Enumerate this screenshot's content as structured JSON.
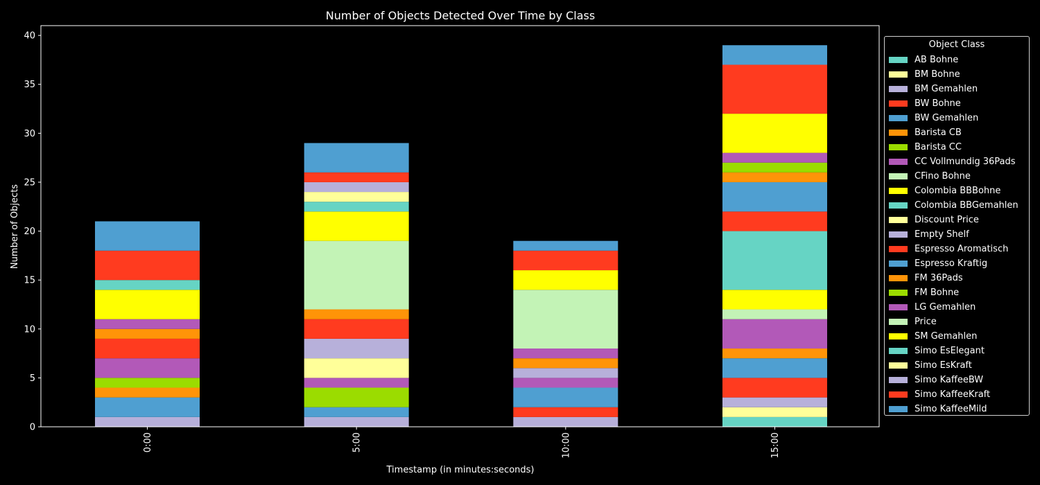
{
  "chart_data": {
    "type": "bar",
    "stacked": true,
    "title": "Number of Objects Detected Over Time by Class",
    "xlabel": "Timestamp (in minutes:seconds)",
    "ylabel": "Number of Objects",
    "categories": [
      "0:00",
      "5:00",
      "10:00",
      "15:00"
    ],
    "ylim": [
      0,
      41
    ],
    "yticks": [
      0,
      5,
      10,
      15,
      20,
      25,
      30,
      35,
      40
    ],
    "legend_title": "Object Class",
    "legend_position": "right, outside plot",
    "series": [
      {
        "name": "AB Bohne",
        "color": "#66d4c4",
        "values": [
          0,
          0,
          0,
          1
        ]
      },
      {
        "name": "BM Bohne",
        "color": "#ffff99",
        "values": [
          0,
          0,
          0,
          1
        ]
      },
      {
        "name": "BM Gemahlen",
        "color": "#b7b0da",
        "values": [
          1,
          1,
          1,
          1
        ]
      },
      {
        "name": "BW Bohne",
        "color": "#ff3b1f",
        "values": [
          0,
          0,
          1,
          2
        ]
      },
      {
        "name": "BW Gemahlen",
        "color": "#4f9fd1",
        "values": [
          2,
          1,
          2,
          2
        ]
      },
      {
        "name": "Barista CB",
        "color": "#ff9408",
        "values": [
          1,
          0,
          0,
          1
        ]
      },
      {
        "name": "Barista CC",
        "color": "#9bdc00",
        "values": [
          1,
          2,
          0,
          0
        ]
      },
      {
        "name": "CC Vollmundig 36Pads",
        "color": "#b259b8",
        "values": [
          2,
          1,
          1,
          3
        ]
      },
      {
        "name": "CFino Bohne",
        "color": "#c3f3b6",
        "values": [
          0,
          0,
          0,
          1
        ]
      },
      {
        "name": "Colombia BBBohne",
        "color": "#ffff00",
        "values": [
          0,
          0,
          0,
          2
        ]
      },
      {
        "name": "Colombia BBGemahlen",
        "color": "#66d4c4",
        "values": [
          0,
          0,
          0,
          6
        ]
      },
      {
        "name": "Discount Price",
        "color": "#ffff99",
        "values": [
          0,
          2,
          0,
          0
        ]
      },
      {
        "name": "Empty Shelf",
        "color": "#b7b0da",
        "values": [
          0,
          2,
          1,
          0
        ]
      },
      {
        "name": "Espresso Aromatisch",
        "color": "#ff3b1f",
        "values": [
          2,
          2,
          0,
          2
        ]
      },
      {
        "name": "Espresso Kraftig",
        "color": "#4f9fd1",
        "values": [
          0,
          0,
          0,
          3
        ]
      },
      {
        "name": "FM 36Pads",
        "color": "#ff9408",
        "values": [
          1,
          1,
          1,
          1
        ]
      },
      {
        "name": "FM Bohne",
        "color": "#9bdc00",
        "values": [
          0,
          0,
          0,
          1
        ]
      },
      {
        "name": "LG Gemahlen",
        "color": "#b259b8",
        "values": [
          1,
          0,
          1,
          1
        ]
      },
      {
        "name": "Price",
        "color": "#c3f3b6",
        "values": [
          0,
          7,
          6,
          0
        ]
      },
      {
        "name": "SM Gemahlen",
        "color": "#ffff00",
        "values": [
          3,
          3,
          2,
          4
        ]
      },
      {
        "name": "Simo EsElegant",
        "color": "#66d4c4",
        "values": [
          1,
          1,
          0,
          0
        ]
      },
      {
        "name": "Simo EsKraft",
        "color": "#ffff99",
        "values": [
          0,
          1,
          0,
          0
        ]
      },
      {
        "name": "Simo KaffeeBW",
        "color": "#b7b0da",
        "values": [
          0,
          1,
          0,
          0
        ]
      },
      {
        "name": "Simo KaffeeKraft",
        "color": "#ff3b1f",
        "values": [
          3,
          1,
          2,
          5
        ]
      },
      {
        "name": "Simo KaffeeMild",
        "color": "#4f9fd1",
        "values": [
          3,
          3,
          1,
          2
        ]
      }
    ]
  }
}
